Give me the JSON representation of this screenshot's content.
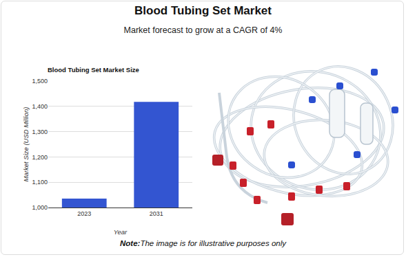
{
  "header": {
    "title": "Blood Tubing Set Market",
    "subtitle": "Market forecast to grow at a CAGR of 4%"
  },
  "chart_data": {
    "type": "bar",
    "title": "Blood Tubing Set Market Size",
    "x_label": "Year",
    "y_label": "Market Size (USD Million)",
    "categories": [
      "2023",
      "2031"
    ],
    "values": [
      1035,
      1418
    ],
    "color": "#3355d1",
    "ylim": [
      1000,
      1500
    ],
    "yticks": [
      {
        "value": 1000,
        "label": "1,000"
      },
      {
        "value": 1100,
        "label": "1,100"
      },
      {
        "value": 1200,
        "label": "1,200"
      },
      {
        "value": 1300,
        "label": "1,300"
      },
      {
        "value": 1400,
        "label": "1,400"
      },
      {
        "value": 1500,
        "label": "1,500"
      }
    ],
    "grid": true
  },
  "note": {
    "label": "Note:",
    "text": "The image is for illustrative purposes only"
  }
}
